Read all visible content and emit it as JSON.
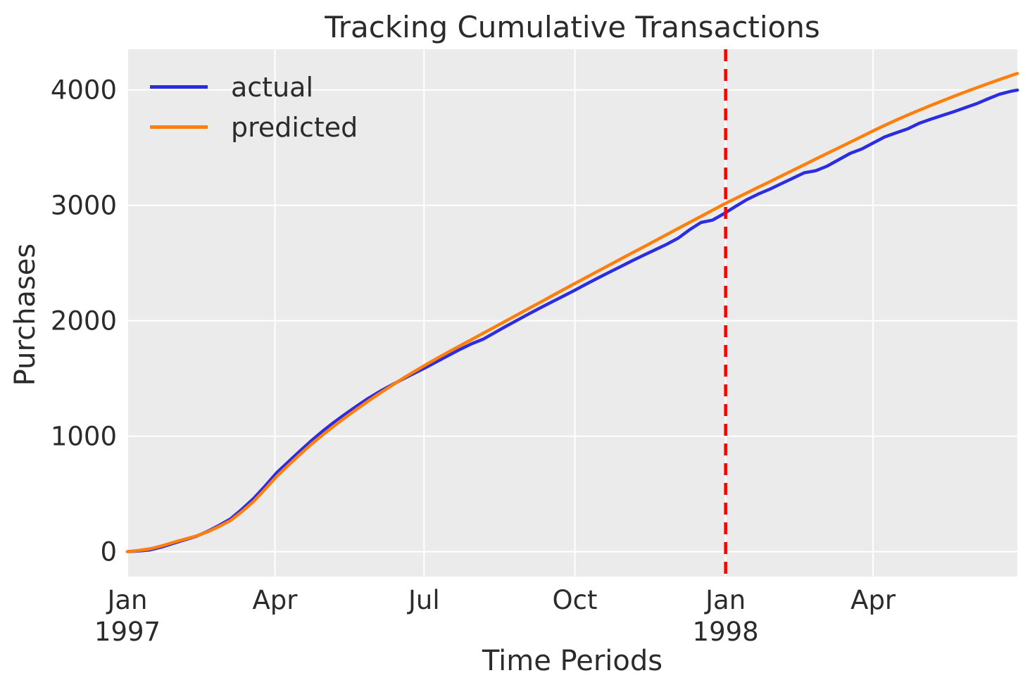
{
  "figure": {
    "title": "Tracking Cumulative Transactions",
    "xlabel": "Time Periods",
    "ylabel": "Purchases"
  },
  "legend": {
    "items": [
      {
        "label": "actual",
        "color": "#2c2ce0"
      },
      {
        "label": "predicted",
        "color": "#ff7f0e"
      }
    ]
  },
  "colors": {
    "plot_background": "#ebebeb",
    "gridline": "#ffffff",
    "text": "#2b2b2b",
    "actual_line": "#2c2ce0",
    "predicted_line": "#ff7f0e",
    "calibration_line": "#ff0000"
  },
  "chart_data": {
    "type": "line",
    "title": "Tracking Cumulative Transactions",
    "xlabel": "Time Periods",
    "ylabel": "Purchases",
    "x_unit": "days since 1997-01-01, weekly samples",
    "xlim_days": [
      0,
      543
    ],
    "ylim": [
      -216,
      4352
    ],
    "grid": true,
    "legend_position": "upper left",
    "y_ticks": [
      {
        "value": 0,
        "label": "0"
      },
      {
        "value": 1000,
        "label": "1000"
      },
      {
        "value": 2000,
        "label": "2000"
      },
      {
        "value": 3000,
        "label": "3000"
      },
      {
        "value": 4000,
        "label": "4000"
      }
    ],
    "x_ticks": [
      {
        "day": 0,
        "line1": "Jan",
        "line2": "1997"
      },
      {
        "day": 90,
        "line1": "Apr",
        "line2": ""
      },
      {
        "day": 181,
        "line1": "Jul",
        "line2": ""
      },
      {
        "day": 273,
        "line1": "Oct",
        "line2": ""
      },
      {
        "day": 365,
        "line1": "Jan",
        "line2": "1998"
      },
      {
        "day": 455,
        "line1": "Apr",
        "line2": ""
      }
    ],
    "vline": {
      "day": 365,
      "style": "dashed",
      "color": "#ff0000",
      "meaning": "calibration period end"
    },
    "x_days": [
      0,
      7,
      14,
      21,
      28,
      35,
      42,
      49,
      56,
      63,
      70,
      77,
      84,
      91,
      98,
      105,
      112,
      119,
      126,
      133,
      140,
      147,
      154,
      161,
      168,
      175,
      182,
      189,
      196,
      203,
      210,
      217,
      224,
      231,
      238,
      245,
      252,
      259,
      266,
      273,
      280,
      287,
      294,
      301,
      308,
      315,
      322,
      329,
      336,
      343,
      350,
      357,
      364,
      371,
      378,
      385,
      392,
      399,
      406,
      413,
      420,
      427,
      434,
      441,
      448,
      455,
      462,
      469,
      476,
      483,
      490,
      497,
      504,
      511,
      518,
      525,
      532,
      539,
      543
    ],
    "series": [
      {
        "name": "actual",
        "color": "#2c2ce0",
        "values": [
          0,
          6,
          15,
          40,
          72,
          102,
          133,
          176,
          228,
          285,
          368,
          460,
          568,
          682,
          775,
          868,
          958,
          1042,
          1120,
          1192,
          1262,
          1328,
          1388,
          1442,
          1495,
          1545,
          1595,
          1648,
          1700,
          1752,
          1800,
          1840,
          1896,
          1952,
          2006,
          2060,
          2112,
          2163,
          2214,
          2265,
          2318,
          2370,
          2420,
          2470,
          2520,
          2568,
          2615,
          2662,
          2715,
          2788,
          2852,
          2872,
          2928,
          2990,
          3050,
          3098,
          3140,
          3188,
          3235,
          3282,
          3300,
          3340,
          3395,
          3450,
          3488,
          3540,
          3592,
          3628,
          3662,
          3710,
          3745,
          3778,
          3810,
          3845,
          3880,
          3922,
          3962,
          3988,
          3998
        ]
      },
      {
        "name": "predicted",
        "color": "#ff7f0e",
        "values": [
          0,
          10,
          25,
          50,
          80,
          108,
          135,
          172,
          218,
          270,
          348,
          435,
          540,
          650,
          745,
          838,
          928,
          1010,
          1088,
          1163,
          1235,
          1305,
          1372,
          1437,
          1500,
          1560,
          1618,
          1675,
          1730,
          1784,
          1837,
          1891,
          1945,
          1999,
          2053,
          2107,
          2161,
          2215,
          2269,
          2323,
          2376,
          2429,
          2482,
          2535,
          2588,
          2640,
          2693,
          2746,
          2799,
          2852,
          2904,
          2957,
          3010,
          3059,
          3108,
          3157,
          3205,
          3254,
          3303,
          3352,
          3401,
          3450,
          3498,
          3547,
          3596,
          3645,
          3692,
          3738,
          3781,
          3823,
          3864,
          3904,
          3943,
          3981,
          4018,
          4054,
          4089,
          4123,
          4142
        ]
      }
    ]
  }
}
